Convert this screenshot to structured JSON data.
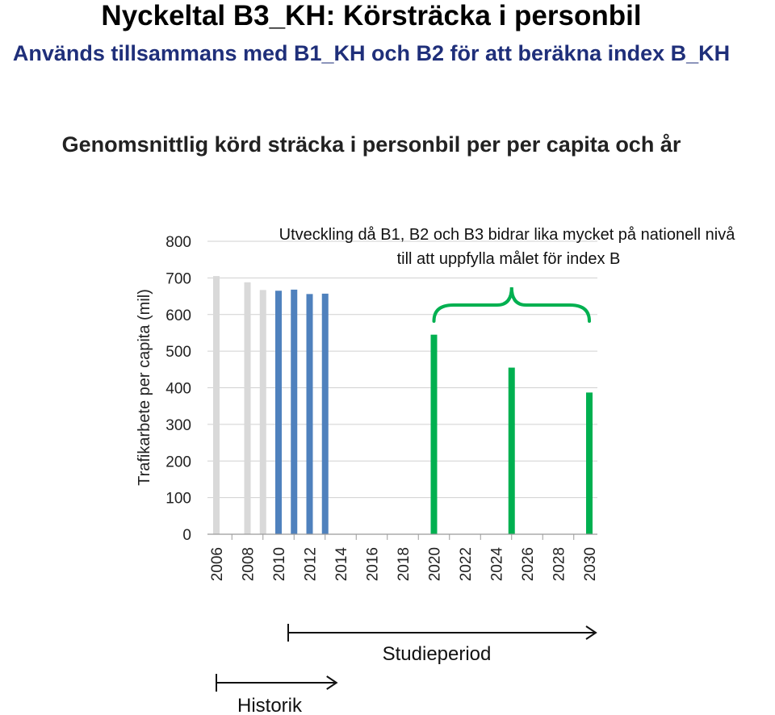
{
  "header": {
    "title": "Nyckeltal B3_KH: Körsträcka i personbil",
    "subtitle": "Används tillsammans med B1_KH och B2 för att beräkna index B_KH",
    "chart_heading": "Genomsnittlig körd sträcka i personbil per per capita och år"
  },
  "colors": {
    "historic_light": "#d9d9d9",
    "historic_blue": "#4f81bd",
    "projection_green": "#00b050",
    "grid": "#d0d0d0"
  },
  "chart_data": {
    "type": "bar",
    "ylabel": "Trafikarbete per capita (mil)",
    "ylim": [
      0,
      800
    ],
    "yticks": [
      0,
      100,
      200,
      300,
      400,
      500,
      600,
      700,
      800
    ],
    "x_tick_labels": [
      "2006",
      "2008",
      "2010",
      "2012",
      "2014",
      "2016",
      "2018",
      "2020",
      "2022",
      "2024",
      "2026",
      "2028",
      "2030"
    ],
    "x_range": [
      2006,
      2030
    ],
    "series": [
      {
        "color_key": "historic_light",
        "points": [
          {
            "x": 2006,
            "y": 705
          },
          {
            "x": 2008,
            "y": 688
          },
          {
            "x": 2009,
            "y": 667
          }
        ]
      },
      {
        "color_key": "historic_blue",
        "points": [
          {
            "x": 2010,
            "y": 665
          },
          {
            "x": 2011,
            "y": 668
          },
          {
            "x": 2012,
            "y": 656
          },
          {
            "x": 2013,
            "y": 657
          }
        ]
      },
      {
        "color_key": "projection_green",
        "points": [
          {
            "x": 2020,
            "y": 545
          },
          {
            "x": 2025,
            "y": 455
          },
          {
            "x": 2030,
            "y": 387
          }
        ]
      }
    ],
    "annotation": {
      "lines": [
        "Utveckling då B1, B2 och B3 bidrar lika mycket på nationell nivå",
        "till att uppfylla målet för index B"
      ]
    },
    "periods": [
      {
        "label": "Studieperiod",
        "from": 2010,
        "to": 2030
      },
      {
        "label": "Historik",
        "from": 2006,
        "to": 2013
      }
    ]
  }
}
